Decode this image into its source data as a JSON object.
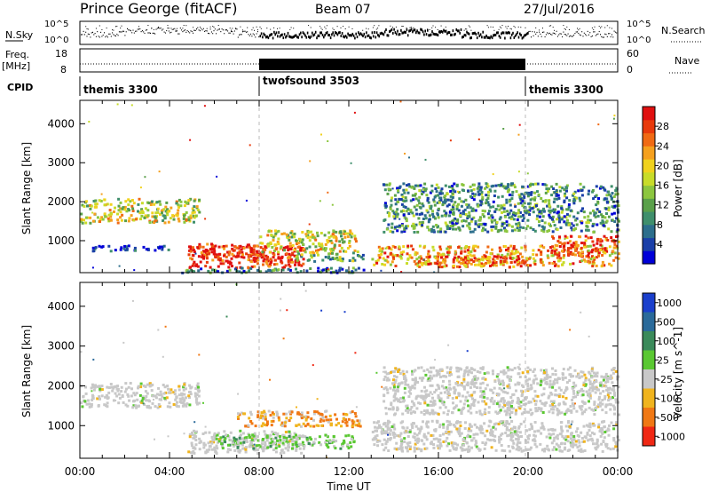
{
  "header": {
    "station": "Prince George (fitACF)",
    "beam": "Beam 07",
    "date": "27/Jul/2016"
  },
  "status_panels": {
    "nsky": {
      "label": "N.Sky",
      "y_ticks": [
        "10^5",
        "10^0"
      ],
      "right_label": "N.Search",
      "right_ticks": [
        "10^5",
        "10^0"
      ]
    },
    "freq": {
      "label": "Freq.",
      "unit": "[MHz]",
      "y_ticks": [
        "18",
        "8"
      ],
      "right_label": "Nave",
      "right_ticks": [
        "60",
        "0"
      ]
    },
    "cpid": {
      "label": "CPID",
      "segments": [
        {
          "name": "themis 3300",
          "start_h": 0,
          "end_h": 8
        },
        {
          "name": "twofsound 3503",
          "start_h": 8,
          "end_h": 20
        },
        {
          "name": "themis 3300",
          "start_h": 20,
          "end_h": 24
        }
      ]
    }
  },
  "chart_data": [
    {
      "type": "heatmap",
      "name": "power",
      "ylabel": "Slant Range [km]",
      "xlabel": "",
      "xlim": [
        0,
        24
      ],
      "ylim": [
        180,
        4600
      ],
      "y_ticks": [
        "1000",
        "2000",
        "3000",
        "4000"
      ],
      "colorbar": {
        "label": "Power [dB]",
        "ticks": [
          "4",
          "8",
          "12",
          "16",
          "20",
          "24",
          "28"
        ],
        "colors": [
          "#0000d8",
          "#1a3fa8",
          "#2c6e8c",
          "#3f8f6c",
          "#5aa04a",
          "#8cc63f",
          "#c8dc2a",
          "#f0d21e",
          "#f5a01e",
          "#f06a14",
          "#e83a0c",
          "#e01010"
        ]
      },
      "echo_bands": [
        {
          "t0": 0.0,
          "t1": 5.3,
          "r0": 1480,
          "r1": 2100,
          "level": 0.55
        },
        {
          "t0": 0.5,
          "t1": 4.0,
          "r0": 760,
          "r1": 900,
          "level": 0.05
        },
        {
          "t0": 4.8,
          "t1": 10.0,
          "r0": 330,
          "r1": 900,
          "level": 0.95
        },
        {
          "t0": 4.9,
          "t1": 8.2,
          "r0": 560,
          "r1": 950,
          "level": 0.92
        },
        {
          "t0": 8.0,
          "t1": 12.4,
          "r0": 700,
          "r1": 1300,
          "level": 0.55
        },
        {
          "t0": 9.5,
          "t1": 12.6,
          "r0": 500,
          "r1": 700,
          "level": 0.35
        },
        {
          "t0": 13.0,
          "t1": 24.0,
          "r0": 380,
          "r1": 900,
          "level": 0.7
        },
        {
          "t0": 15.0,
          "t1": 20.0,
          "r0": 350,
          "r1": 650,
          "level": 0.8
        },
        {
          "t0": 21.0,
          "t1": 24.0,
          "r0": 650,
          "r1": 1150,
          "level": 0.85
        },
        {
          "t0": 13.5,
          "t1": 24.0,
          "r0": 1250,
          "r1": 2500,
          "level": 0.3
        },
        {
          "t0": 4.5,
          "t1": 13.0,
          "r0": 200,
          "r1": 330,
          "level": 0.25
        }
      ]
    },
    {
      "type": "heatmap",
      "name": "velocity",
      "ylabel": "Slant Range [km]",
      "xlabel": "Time UT",
      "xlim": [
        0,
        24
      ],
      "ylim": [
        180,
        4600
      ],
      "x_ticks": [
        "00:00",
        "04:00",
        "08:00",
        "12:00",
        "16:00",
        "20:00",
        "00:00"
      ],
      "y_ticks": [
        "1000",
        "2000",
        "3000",
        "4000"
      ],
      "colorbar": {
        "label": "Velocity [m s^-1]",
        "ticks": [
          "1000",
          "500",
          "100",
          "25",
          "-25",
          "-100",
          "-500",
          "-1000"
        ],
        "colors": [
          "#1a3fcc",
          "#2a6a9a",
          "#3a8a5a",
          "#5ac832",
          "#c8c8c8",
          "#f0b41e",
          "#f07814",
          "#f02814"
        ]
      },
      "echo_bands": [
        {
          "t0": 0.0,
          "t1": 5.3,
          "r0": 1480,
          "r1": 2100,
          "class": "ground"
        },
        {
          "t0": 4.8,
          "t1": 10.0,
          "r0": 330,
          "r1": 900,
          "class": "ground"
        },
        {
          "t0": 7.0,
          "t1": 12.5,
          "r0": 1000,
          "r1": 1400,
          "class": "neg"
        },
        {
          "t0": 6.0,
          "t1": 12.2,
          "r0": 450,
          "r1": 800,
          "class": "pos"
        },
        {
          "t0": 13.0,
          "t1": 24.0,
          "r0": 380,
          "r1": 1150,
          "class": "ground"
        },
        {
          "t0": 13.5,
          "t1": 24.0,
          "r0": 1300,
          "r1": 2500,
          "class": "ground"
        }
      ]
    }
  ]
}
